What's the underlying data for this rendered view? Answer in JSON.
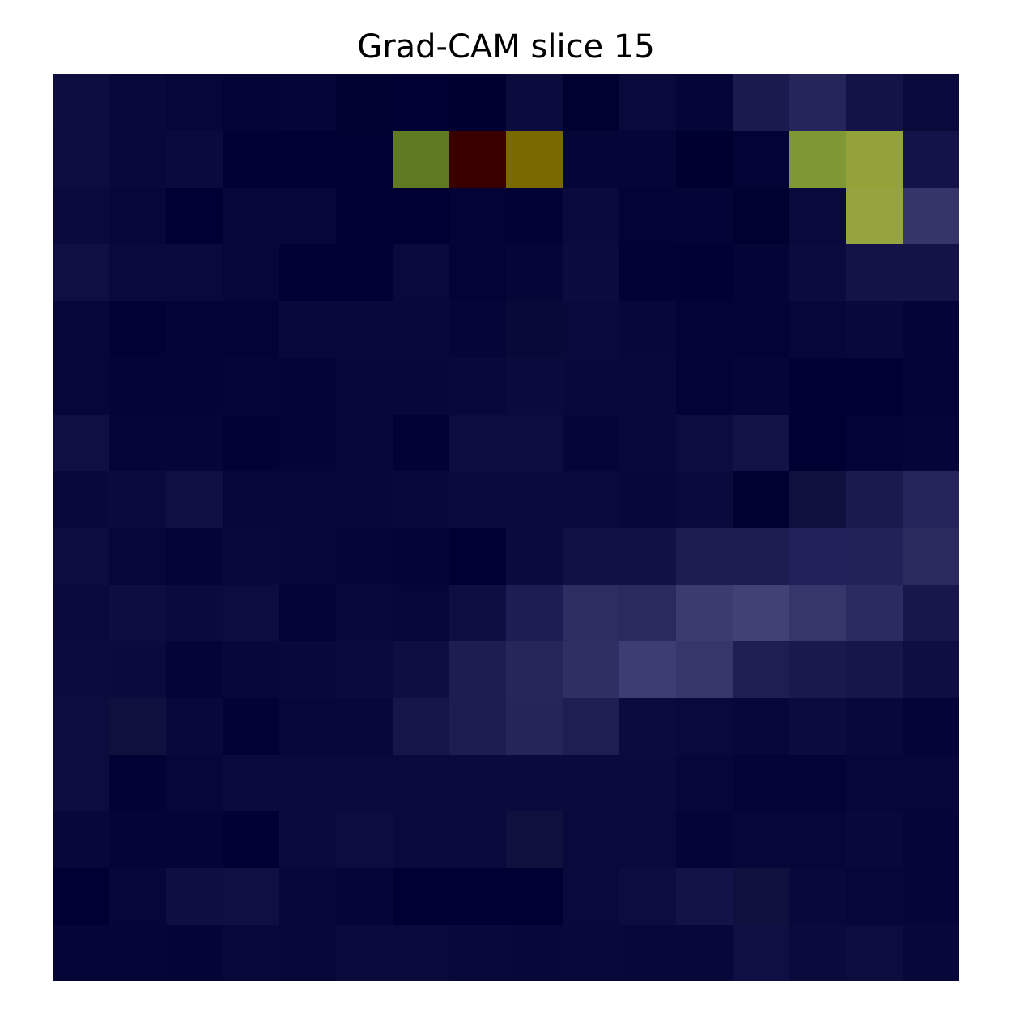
{
  "chart_data": {
    "type": "heatmap",
    "title": "Grad-CAM slice 15",
    "xlabel": "",
    "ylabel": "",
    "axes_visible": false,
    "grid": false,
    "rows": 16,
    "cols": 16,
    "colors": [
      [
        "#0d0d3f",
        "#08083a",
        "#060639",
        "#030335",
        "#050537",
        "#010132",
        "#000034",
        "#000030",
        "#0b0b3e",
        "#000031",
        "#09093c",
        "#050537",
        "#1a1a4e",
        "#25255b",
        "#131347",
        "#09093b"
      ],
      [
        "#0c0c3e",
        "#08083a",
        "#0a0a3d",
        "#010133",
        "#000032",
        "#010133",
        "#5f7a22",
        "#3a0000",
        "#796a00",
        "#050538",
        "#050537",
        "#000030",
        "#030335",
        "#7e9836",
        "#94a23a",
        "#13134a"
      ],
      [
        "#09093c",
        "#060638",
        "#000032",
        "#060638",
        "#060638",
        "#010133",
        "#000032",
        "#030335",
        "#020234",
        "#0a0a3d",
        "#030335",
        "#040436",
        "#000031",
        "#09093b",
        "#96a43f",
        "#35356a"
      ],
      [
        "#0f0f43",
        "#09093c",
        "#09093c",
        "#060638",
        "#010133",
        "#010133",
        "#09093c",
        "#030335",
        "#050537",
        "#0b0b3e",
        "#020234",
        "#010133",
        "#040436",
        "#0b0b3e",
        "#131347",
        "#131347"
      ],
      [
        "#060638",
        "#020234",
        "#040436",
        "#030335",
        "#08083a",
        "#08083a",
        "#08083a",
        "#050537",
        "#080839",
        "#09093b",
        "#070739",
        "#030335",
        "#030335",
        "#060638",
        "#08083a",
        "#040436"
      ],
      [
        "#060638",
        "#040436",
        "#040436",
        "#050537",
        "#040436",
        "#07073a",
        "#07073a",
        "#08083a",
        "#0a0a3d",
        "#08083a",
        "#08083a",
        "#030335",
        "#050537",
        "#010133",
        "#000032",
        "#030335"
      ],
      [
        "#0f0f43",
        "#050537",
        "#050537",
        "#020234",
        "#040436",
        "#07073a",
        "#020234",
        "#0c0c3e",
        "#0c0c3f",
        "#050537",
        "#08083a",
        "#0c0c3f",
        "#121246",
        "#000032",
        "#030335",
        "#050537"
      ],
      [
        "#08083a",
        "#0a0a3c",
        "#0f0f43",
        "#060638",
        "#060638",
        "#07073a",
        "#08083a",
        "#0a0a3c",
        "#0a0a3c",
        "#09093b",
        "#07073a",
        "#0a0a3d",
        "#000031",
        "#10103f",
        "#1a1a4e",
        "#25255b"
      ],
      [
        "#0c0c3e",
        "#060638",
        "#040436",
        "#08083a",
        "#060638",
        "#050537",
        "#030335",
        "#000032",
        "#0a0a3c",
        "#111145",
        "#111145",
        "#1d1d52",
        "#1d1d52",
        "#20205a",
        "#222258",
        "#2a2a5e"
      ],
      [
        "#09093c",
        "#0d0d3f",
        "#0a0a3d",
        "#0c0c3f",
        "#030335",
        "#08083a",
        "#060638",
        "#0e0e42",
        "#1d1d54",
        "#2d2d62",
        "#2a2a5e",
        "#3b3b6f",
        "#414176",
        "#36366b",
        "#2b2b61",
        "#17174b"
      ],
      [
        "#0b0b3e",
        "#0a0a3c",
        "#040436",
        "#07073a",
        "#08083a",
        "#0a0a3d",
        "#0e0e42",
        "#1d1d52",
        "#26265b",
        "#2f2f64",
        "#3d3d73",
        "#36366b",
        "#1e1e53",
        "#19194d",
        "#16164a",
        "#0e0e42"
      ],
      [
        "#0c0c3e",
        "#10103f",
        "#08083a",
        "#020234",
        "#060638",
        "#07073a",
        "#151549",
        "#1d1d52",
        "#25255a",
        "#1e1e53",
        "#0b0b3e",
        "#09093b",
        "#07073a",
        "#0b0b3d",
        "#08083a",
        "#040436"
      ],
      [
        "#0c0c3e",
        "#020234",
        "#060638",
        "#0a0a3d",
        "#09093c",
        "#09093c",
        "#09093c",
        "#09093c",
        "#0a0a3d",
        "#0a0a3c",
        "#0a0a3c",
        "#060638",
        "#030335",
        "#030335",
        "#060638",
        "#060638"
      ],
      [
        "#07073a",
        "#040436",
        "#040436",
        "#010133",
        "#0a0a3c",
        "#0c0c3f",
        "#09093b",
        "#09093b",
        "#10103f",
        "#09093c",
        "#09093c",
        "#040436",
        "#060638",
        "#060638",
        "#08083a",
        "#050537"
      ],
      [
        "#000034",
        "#060638",
        "#0e0e42",
        "#0f0f43",
        "#07073a",
        "#050537",
        "#000032",
        "#000032",
        "#000032",
        "#09093b",
        "#0c0c3f",
        "#131347",
        "#10103f",
        "#08083a",
        "#060638",
        "#050537"
      ],
      [
        "#050537",
        "#050537",
        "#040436",
        "#08083a",
        "#060638",
        "#0a0a3c",
        "#0a0a3c",
        "#08083a",
        "#07073a",
        "#08083a",
        "#07073a",
        "#07073a",
        "#0f0f43",
        "#0a0a3c",
        "#0c0c3f",
        "#07073a"
      ]
    ]
  }
}
